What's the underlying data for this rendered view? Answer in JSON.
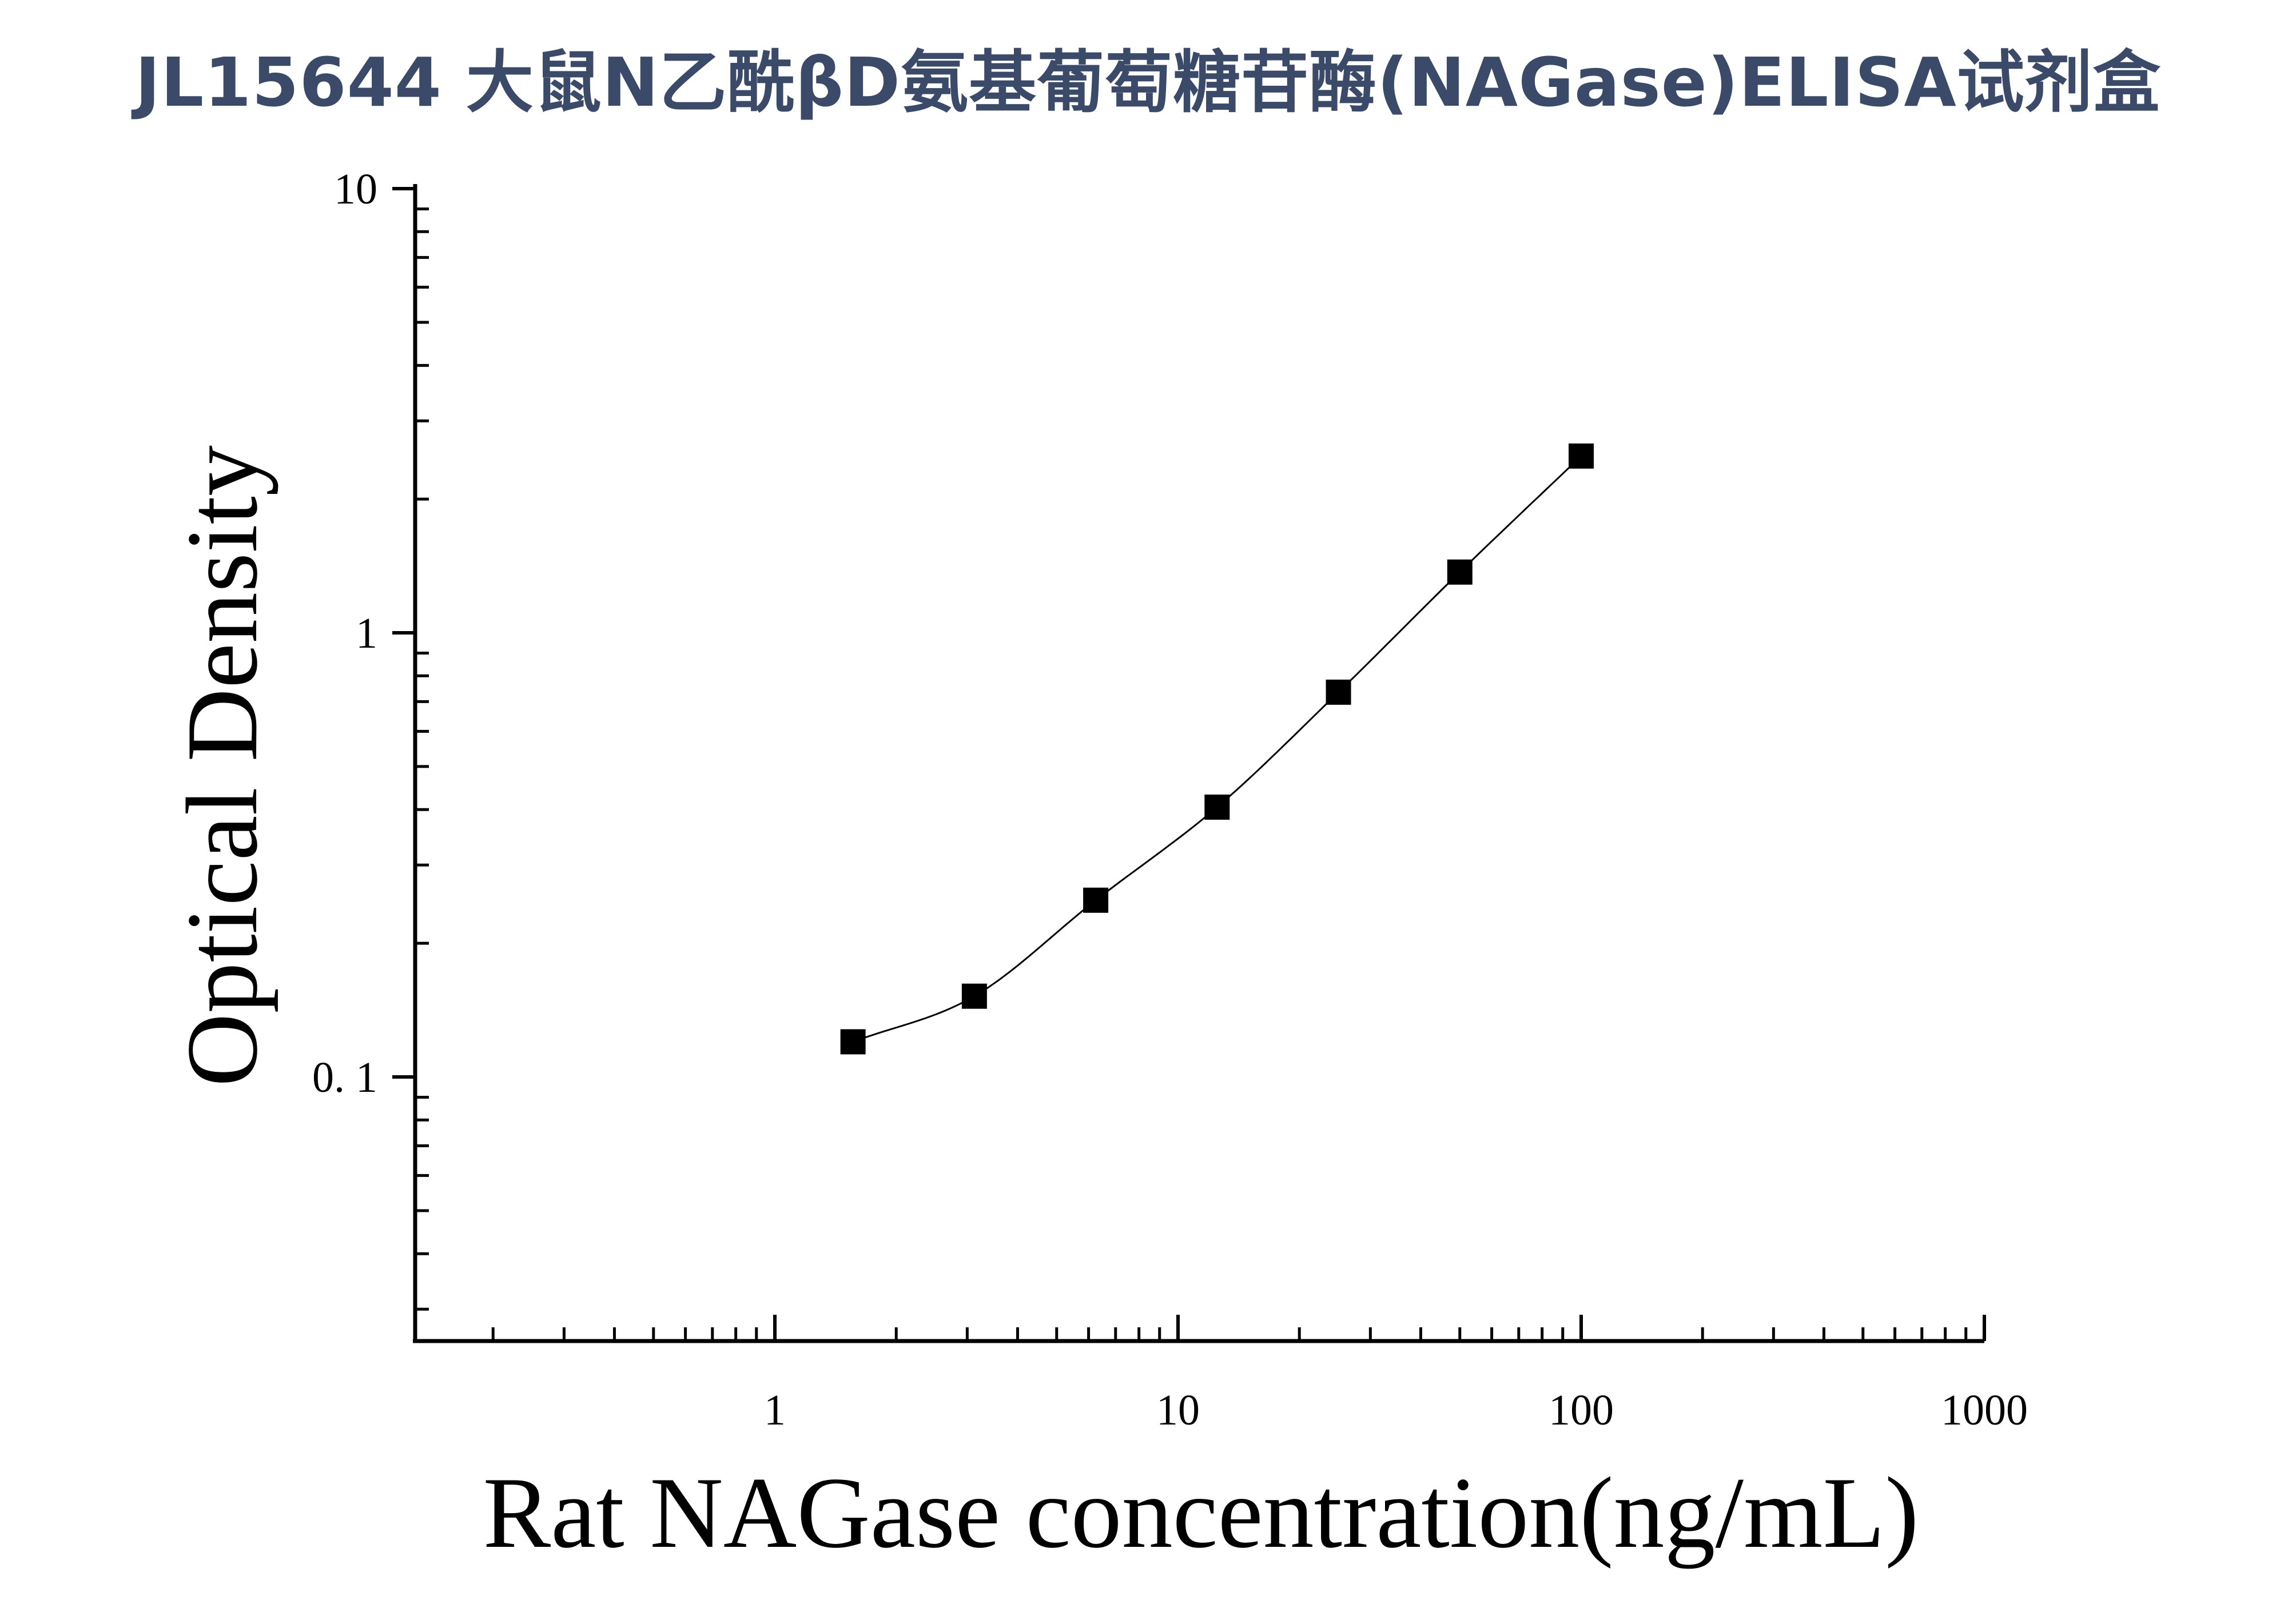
{
  "title": "JL15644 大鼠N乙酰βD氨基葡萄糖苷酶(NAGase)ELISA试剂盒",
  "chart_data": {
    "type": "scatter",
    "xlabel": "Rat NAGase concentration(ng/mL)",
    "ylabel": "Optical Density",
    "xscale": "log",
    "yscale": "log",
    "xlim": [
      0.15,
      1000
    ],
    "ylim": [
      0.025,
      10
    ],
    "x_ticks": [
      {
        "value": 1,
        "label": "1"
      },
      {
        "value": 10,
        "label": "10"
      },
      {
        "value": 100,
        "label": "100"
      },
      {
        "value": 1000,
        "label": "1000"
      }
    ],
    "y_ticks": [
      {
        "value": 0.1,
        "label": "0. 1"
      },
      {
        "value": 1,
        "label": "1"
      },
      {
        "value": 10,
        "label": "10"
      }
    ],
    "series": [
      {
        "marker": "square",
        "x": [
          1.5625,
          3.125,
          6.25,
          12.5,
          25,
          50,
          100
        ],
        "y": [
          0.12,
          0.152,
          0.25,
          0.405,
          0.735,
          1.37,
          2.5
        ],
        "fit_line": true
      }
    ],
    "grid": false,
    "legend": "none"
  }
}
